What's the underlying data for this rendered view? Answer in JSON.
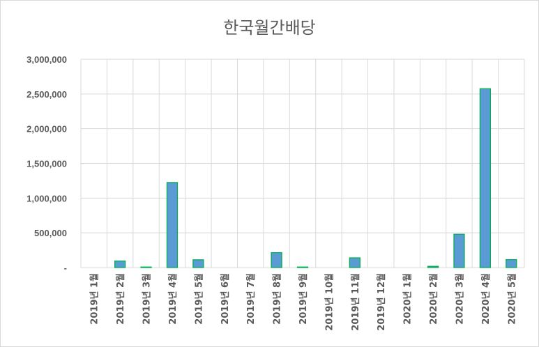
{
  "chart_data": {
    "type": "bar",
    "title": "한국월간배당",
    "xlabel": "",
    "ylabel": "",
    "ylim": [
      0,
      3000000
    ],
    "yticks": [
      "-",
      "500,000",
      "1,000,000",
      "1,500,000",
      "2,000,000",
      "2,500,000",
      "3,000,000"
    ],
    "categories": [
      "2019년 1월",
      "2019년 2월",
      "2019년 3월",
      "2019년 4월",
      "2019년 5월",
      "2019년 6월",
      "2019년 7월",
      "2019년 8월",
      "2019년 9월",
      "2019년 10월",
      "2019년 11월",
      "2019년 12월",
      "2020년 1월",
      "2020년 2월",
      "2020년 3월",
      "2020년 4월",
      "2020년 5월"
    ],
    "values": [
      0,
      95000,
      8000,
      1225000,
      112000,
      0,
      0,
      215000,
      8000,
      0,
      140000,
      0,
      0,
      18000,
      480000,
      2575000,
      115000
    ],
    "grid": true,
    "colors": {
      "bar_fill": "#5b9bd5",
      "bar_stroke": "#00b050",
      "grid": "#d9d9d9",
      "text": "#595959"
    }
  }
}
